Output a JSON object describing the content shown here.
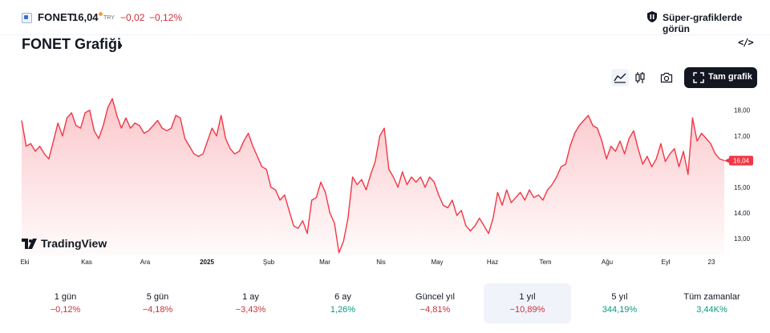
{
  "header": {
    "symbol": "FONET",
    "price": "16,04",
    "currency": "TRY",
    "change": "−0,02",
    "change_pct": "−0,12%",
    "promo_text": "Süper-grafiklerde görün",
    "promo_icon": "shield-icon"
  },
  "title": {
    "text": "FONET Grafiği",
    "chevron": "›"
  },
  "toolbar": {
    "embed_icon": "code-icon",
    "area_icon": "area-chart-icon",
    "candle_icon": "candlestick-icon",
    "camera_icon": "camera-icon",
    "fullscreen_label": "Tam grafik",
    "fullscreen_icon": "fullscreen-icon"
  },
  "brand": {
    "text": "TradingView",
    "logo": "tradingview-logo-icon"
  },
  "colors": {
    "line": "#f23645",
    "negative": "#cc2f3c",
    "positive": "#089981",
    "last_price_bg": "#f23645"
  },
  "chart_data": {
    "type": "area",
    "title": "",
    "x_ticks": [
      "Eki",
      "Kas",
      "Ara",
      "2025",
      "Şub",
      "Mar",
      "Nis",
      "May",
      "Haz",
      "Tem",
      "Ağu",
      "Eyl",
      "23"
    ],
    "y_ticks": [
      "18,00",
      "17,00",
      "16,00",
      "15,00",
      "14,00",
      "13,00"
    ],
    "ylim": [
      12.35,
      18.55
    ],
    "last_value_label": "16,04",
    "values": [
      17.6,
      16.6,
      16.7,
      16.4,
      16.6,
      16.3,
      16.1,
      16.8,
      17.5,
      17.0,
      17.7,
      17.9,
      17.4,
      17.3,
      17.9,
      18.0,
      17.2,
      16.9,
      17.4,
      18.1,
      18.45,
      17.8,
      17.3,
      17.7,
      17.3,
      17.5,
      17.4,
      17.1,
      17.2,
      17.4,
      17.6,
      17.3,
      17.2,
      17.3,
      17.8,
      17.7,
      16.9,
      16.6,
      16.3,
      16.2,
      16.3,
      16.8,
      17.3,
      17.0,
      17.8,
      16.9,
      16.5,
      16.3,
      16.4,
      16.8,
      17.1,
      16.6,
      16.2,
      15.8,
      15.7,
      15.0,
      14.9,
      14.5,
      14.7,
      14.1,
      13.5,
      13.4,
      13.7,
      13.2,
      14.5,
      14.6,
      15.2,
      14.8,
      14.0,
      13.6,
      12.45,
      12.9,
      13.8,
      15.4,
      15.1,
      15.3,
      14.9,
      15.5,
      16.0,
      17.0,
      17.3,
      15.7,
      15.4,
      15.0,
      15.6,
      15.1,
      15.4,
      15.2,
      15.4,
      15.0,
      15.4,
      15.2,
      14.7,
      14.3,
      14.2,
      14.5,
      13.9,
      14.1,
      13.5,
      13.3,
      13.5,
      13.8,
      13.5,
      13.2,
      13.8,
      14.8,
      14.3,
      14.9,
      14.4,
      14.6,
      14.8,
      14.5,
      14.9,
      14.6,
      14.7,
      14.5,
      14.9,
      15.1,
      15.4,
      15.8,
      15.9,
      16.6,
      17.1,
      17.4,
      17.6,
      17.8,
      17.4,
      17.3,
      16.8,
      16.1,
      16.6,
      16.4,
      16.8,
      16.3,
      16.9,
      17.2,
      16.5,
      15.9,
      16.2,
      15.8,
      16.1,
      16.7,
      16.0,
      16.3,
      16.5,
      15.8,
      16.4,
      15.5,
      17.7,
      16.8,
      17.1,
      16.9,
      16.7,
      16.3,
      16.1,
      16.04
    ]
  },
  "ranges": [
    {
      "label": "1 gün",
      "value": "−0,12%",
      "sign": "neg"
    },
    {
      "label": "5 gün",
      "value": "−4,18%",
      "sign": "neg"
    },
    {
      "label": "1 ay",
      "value": "−3,43%",
      "sign": "neg"
    },
    {
      "label": "6 ay",
      "value": "1,26%",
      "sign": "pos"
    },
    {
      "label": "Güncel yıl",
      "value": "−4,81%",
      "sign": "neg"
    },
    {
      "label": "1 yıl",
      "value": "−10,89%",
      "sign": "neg",
      "active": true
    },
    {
      "label": "5 yıl",
      "value": "344,19%",
      "sign": "pos"
    },
    {
      "label": "Tüm zamanlar",
      "value": "3,44K%",
      "sign": "pos"
    }
  ]
}
